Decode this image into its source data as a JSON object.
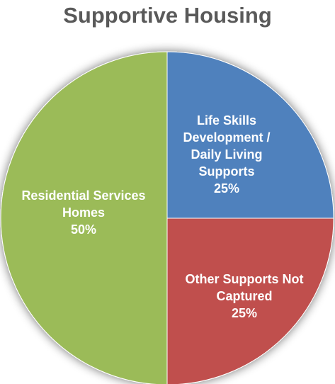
{
  "chart_data": {
    "type": "pie",
    "title": "Supportive Housing",
    "slices": [
      {
        "name": "Life Skills Development / Daily Living Supports",
        "label_lines": [
          "Life Skills",
          "Development /",
          "Daily Living",
          "Supports"
        ],
        "value": 25,
        "value_label": "25%",
        "color": "#4F81BD"
      },
      {
        "name": "Other Supports Not Captured",
        "label_lines": [
          "Other Supports Not",
          "Captured"
        ],
        "value": 25,
        "value_label": "25%",
        "color": "#C0504D"
      },
      {
        "name": "Residential Services Homes",
        "label_lines": [
          "Residential Services",
          "Homes"
        ],
        "value": 50,
        "value_label": "50%",
        "color": "#9BBB59"
      }
    ],
    "legend": "none",
    "data_labels": "inside"
  }
}
